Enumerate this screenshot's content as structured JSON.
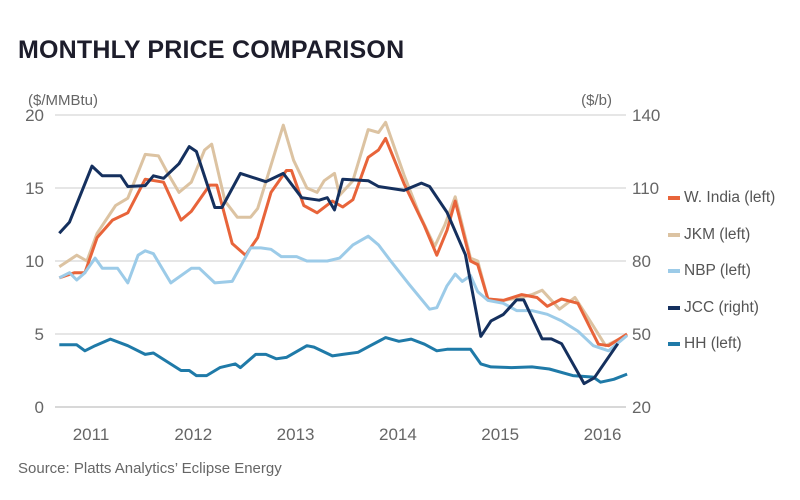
{
  "chart_data": {
    "type": "line",
    "title": "MONTHLY PRICE COMPARISON",
    "source": "Source: Platts Analytics’ Eclipse Energy",
    "ylabel_left": "($/MMBtu)",
    "ylabel_right": "($/b)",
    "ylim_left": [
      0,
      20
    ],
    "ylim_right": [
      20,
      140
    ],
    "yticks_left": [
      "0",
      "5",
      "10",
      "15",
      "20"
    ],
    "yticks_right": [
      "20",
      "50",
      "80",
      "110",
      "140"
    ],
    "xticks": [
      "2011",
      "2012",
      "2013",
      "2014",
      "2015",
      "2016"
    ],
    "xlim": [
      2010.69,
      2016.24
    ],
    "grid": true,
    "legend_position": "right",
    "series": [
      {
        "name": "W. India (left)",
        "axis": "left",
        "color": "#e8643a",
        "x": [
          2010.69,
          2010.84,
          2010.94,
          2011.06,
          2011.21,
          2011.36,
          2011.53,
          2011.71,
          2011.88,
          2011.98,
          2012.16,
          2012.23,
          2012.38,
          2012.51,
          2012.63,
          2012.76,
          2012.91,
          2012.96,
          2013.08,
          2013.21,
          2013.36,
          2013.46,
          2013.56,
          2013.71,
          2013.81,
          2013.88,
          2014.06,
          2014.26,
          2014.38,
          2014.48,
          2014.56,
          2014.71,
          2014.78,
          2014.88,
          2015.03,
          2015.21,
          2015.36,
          2015.46,
          2015.6,
          2015.76,
          2015.96,
          2016.06,
          2016.24
        ],
        "y": [
          8.85,
          9.2,
          9.2,
          11.6,
          12.8,
          13.3,
          15.6,
          15.4,
          12.8,
          13.4,
          15.2,
          15.2,
          11.2,
          10.4,
          11.6,
          14.7,
          16.2,
          16.2,
          13.8,
          13.3,
          14.1,
          13.7,
          14.2,
          17.1,
          17.6,
          18.4,
          15.3,
          12.4,
          10.4,
          12.1,
          14.1,
          10.0,
          9.75,
          7.4,
          7.3,
          7.7,
          7.5,
          6.9,
          7.4,
          7.1,
          4.3,
          4.2,
          5.0
        ]
      },
      {
        "name": "JKM (left)",
        "axis": "left",
        "color": "#dcc3a2",
        "x": [
          2010.69,
          2010.86,
          2010.96,
          2011.06,
          2011.24,
          2011.36,
          2011.53,
          2011.66,
          2011.76,
          2011.86,
          2011.98,
          2012.11,
          2012.18,
          2012.31,
          2012.43,
          2012.56,
          2012.63,
          2012.73,
          2012.88,
          2012.98,
          2013.11,
          2013.21,
          2013.28,
          2013.38,
          2013.43,
          2013.56,
          2013.71,
          2013.81,
          2013.88,
          2014.06,
          2014.21,
          2014.36,
          2014.46,
          2014.56,
          2014.71,
          2014.78,
          2014.88,
          2015.03,
          2015.21,
          2015.31,
          2015.41,
          2015.58,
          2015.73,
          2015.86,
          2016.03,
          2016.24
        ],
        "y": [
          9.6,
          10.4,
          10.0,
          11.9,
          13.8,
          14.3,
          17.3,
          17.2,
          15.9,
          14.7,
          15.4,
          17.6,
          18.0,
          14.1,
          13.0,
          13.0,
          13.6,
          15.9,
          19.3,
          16.9,
          15.0,
          14.7,
          15.5,
          16.0,
          14.5,
          15.5,
          19.0,
          18.8,
          19.5,
          15.9,
          13.2,
          11.0,
          12.5,
          14.4,
          10.2,
          10.0,
          7.4,
          7.3,
          7.5,
          7.7,
          8.0,
          6.7,
          7.5,
          6.1,
          4.2,
          4.9
        ]
      },
      {
        "name": "NBP (left)",
        "axis": "left",
        "color": "#9ccbe8",
        "x": [
          2010.69,
          2010.79,
          2010.86,
          2010.94,
          2011.04,
          2011.11,
          2011.26,
          2011.36,
          2011.46,
          2011.53,
          2011.61,
          2011.78,
          2011.98,
          2012.06,
          2012.21,
          2012.38,
          2012.56,
          2012.66,
          2012.76,
          2012.86,
          2013.01,
          2013.11,
          2013.31,
          2013.43,
          2013.56,
          2013.71,
          2013.81,
          2013.93,
          2014.11,
          2014.31,
          2014.38,
          2014.48,
          2014.56,
          2014.63,
          2014.71,
          2014.78,
          2014.88,
          2015.03,
          2015.16,
          2015.31,
          2015.46,
          2015.6,
          2015.76,
          2015.91,
          2016.06,
          2016.24
        ],
        "y": [
          8.85,
          9.2,
          8.7,
          9.2,
          10.2,
          9.5,
          9.5,
          8.5,
          10.4,
          10.7,
          10.5,
          8.5,
          9.5,
          9.5,
          8.5,
          8.6,
          10.9,
          10.9,
          10.8,
          10.3,
          10.3,
          10.0,
          10.0,
          10.2,
          11.1,
          11.7,
          11.1,
          10.0,
          8.4,
          6.7,
          6.8,
          8.3,
          9.1,
          8.6,
          9.0,
          7.9,
          7.3,
          7.1,
          6.6,
          6.6,
          6.35,
          5.9,
          5.2,
          4.2,
          3.85,
          4.9
        ]
      },
      {
        "name": "JCC (right)",
        "axis": "right",
        "color": "#15305e",
        "x": [
          2010.69,
          2010.79,
          2011.01,
          2011.11,
          2011.29,
          2011.36,
          2011.53,
          2011.61,
          2011.71,
          2011.86,
          2011.96,
          2012.03,
          2012.21,
          2012.28,
          2012.46,
          2012.71,
          2012.88,
          2013.06,
          2013.23,
          2013.31,
          2013.38,
          2013.46,
          2013.71,
          2013.81,
          2014.06,
          2014.23,
          2014.31,
          2014.48,
          2014.66,
          2014.81,
          2014.91,
          2015.03,
          2015.16,
          2015.23,
          2015.41,
          2015.5,
          2015.6,
          2015.82,
          2015.92,
          2016.15
        ],
        "y": [
          91.4,
          96,
          119,
          115,
          115,
          110.6,
          111,
          115,
          114,
          120,
          127,
          125,
          102,
          102,
          116,
          112.6,
          116,
          106,
          105,
          106,
          101,
          113.6,
          113,
          110.6,
          109,
          112,
          110.6,
          100,
          82.6,
          49,
          55.4,
          58,
          64,
          64,
          48,
          48,
          46,
          29.6,
          32,
          46
        ]
      },
      {
        "name": "HH (left)",
        "axis": "left",
        "color": "#1f7aa8",
        "x": [
          2010.69,
          2010.86,
          2010.94,
          2011.04,
          2011.19,
          2011.36,
          2011.53,
          2011.61,
          2011.88,
          2011.96,
          2012.03,
          2012.13,
          2012.26,
          2012.41,
          2012.46,
          2012.61,
          2012.71,
          2012.81,
          2012.91,
          2013.11,
          2013.18,
          2013.36,
          2013.46,
          2013.61,
          2013.73,
          2013.88,
          2014.01,
          2014.13,
          2014.26,
          2014.38,
          2014.48,
          2014.71,
          2014.81,
          2014.91,
          2015.11,
          2015.31,
          2015.48,
          2015.71,
          2015.91,
          2015.98,
          2016.11,
          2016.24
        ],
        "y": [
          4.26,
          4.26,
          3.85,
          4.2,
          4.65,
          4.2,
          3.6,
          3.7,
          2.5,
          2.5,
          2.15,
          2.15,
          2.7,
          2.95,
          2.7,
          3.6,
          3.6,
          3.3,
          3.4,
          4.2,
          4.1,
          3.5,
          3.6,
          3.75,
          4.2,
          4.75,
          4.5,
          4.65,
          4.3,
          3.85,
          3.95,
          3.95,
          2.95,
          2.75,
          2.7,
          2.75,
          2.6,
          2.15,
          2.05,
          1.7,
          1.9,
          2.25
        ]
      }
    ]
  }
}
